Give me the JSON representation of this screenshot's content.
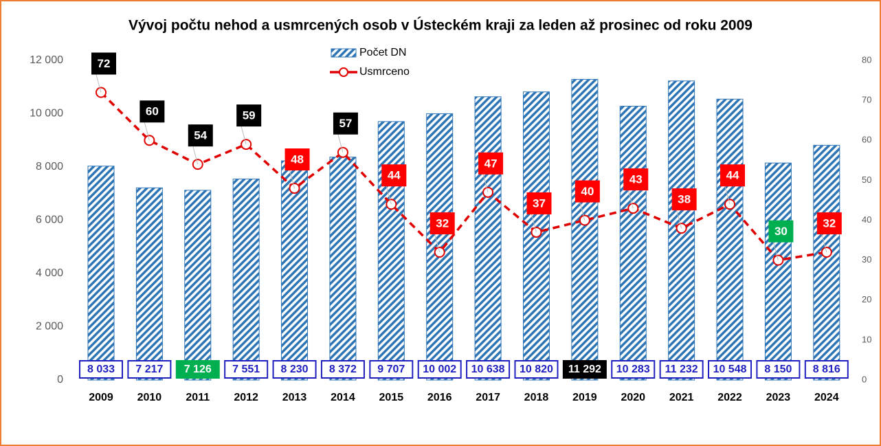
{
  "chart_data": {
    "type": "bar_line",
    "title": "Vývoj počtu nehod a usmrcených osob v Ústeckém kraji za leden až prosinec od roku 2009",
    "categories": [
      "2009",
      "2010",
      "2011",
      "2012",
      "2013",
      "2014",
      "2015",
      "2016",
      "2017",
      "2018",
      "2019",
      "2020",
      "2021",
      "2022",
      "2023",
      "2024"
    ],
    "series": [
      {
        "name": "Počet DN",
        "type": "bar",
        "color": "#2e75b6",
        "values": [
          8033,
          7217,
          7126,
          7551,
          8230,
          8372,
          9707,
          10002,
          10638,
          10820,
          11292,
          10283,
          11232,
          10548,
          8150,
          8816
        ],
        "value_labels": [
          "8 033",
          "7 217",
          "7 126",
          "7 551",
          "8 230",
          "8 372",
          "9 707",
          "10 002",
          "10 638",
          "10 820",
          "11 292",
          "10 283",
          "11 232",
          "10 548",
          "8 150",
          "8 816"
        ],
        "label_colors": [
          "#ffffff",
          "#ffffff",
          "#00b050",
          "#ffffff",
          "#ffffff",
          "#ffffff",
          "#ffffff",
          "#ffffff",
          "#ffffff",
          "#ffffff",
          "#000000",
          "#ffffff",
          "#ffffff",
          "#ffffff",
          "#ffffff",
          "#ffffff"
        ]
      },
      {
        "name": "Usmrceno",
        "type": "line",
        "axis": "y2",
        "color": "#e00000",
        "values": [
          72,
          60,
          54,
          59,
          48,
          57,
          44,
          32,
          47,
          37,
          40,
          43,
          38,
          44,
          30,
          32
        ],
        "label_colors": [
          "#000000",
          "#000000",
          "#000000",
          "#000000",
          "#ff0000",
          "#000000",
          "#ff0000",
          "#ff0000",
          "#ff0000",
          "#ff0000",
          "#ff0000",
          "#ff0000",
          "#ff0000",
          "#ff0000",
          "#00b050",
          "#ff0000"
        ]
      }
    ],
    "ylim": [
      0,
      12000
    ],
    "yticks": [
      {
        "value": 0,
        "label": "0"
      },
      {
        "value": 2000,
        "label": "2 000"
      },
      {
        "value": 4000,
        "label": "4 000"
      },
      {
        "value": 6000,
        "label": "6 000"
      },
      {
        "value": 8000,
        "label": "8 000"
      },
      {
        "value": 10000,
        "label": "10 000"
      },
      {
        "value": 12000,
        "label": "12 000"
      }
    ],
    "y2lim": [
      0,
      80
    ],
    "y2ticks": [
      0,
      10,
      20,
      30,
      40,
      50,
      60,
      70,
      80
    ],
    "grid": false
  }
}
